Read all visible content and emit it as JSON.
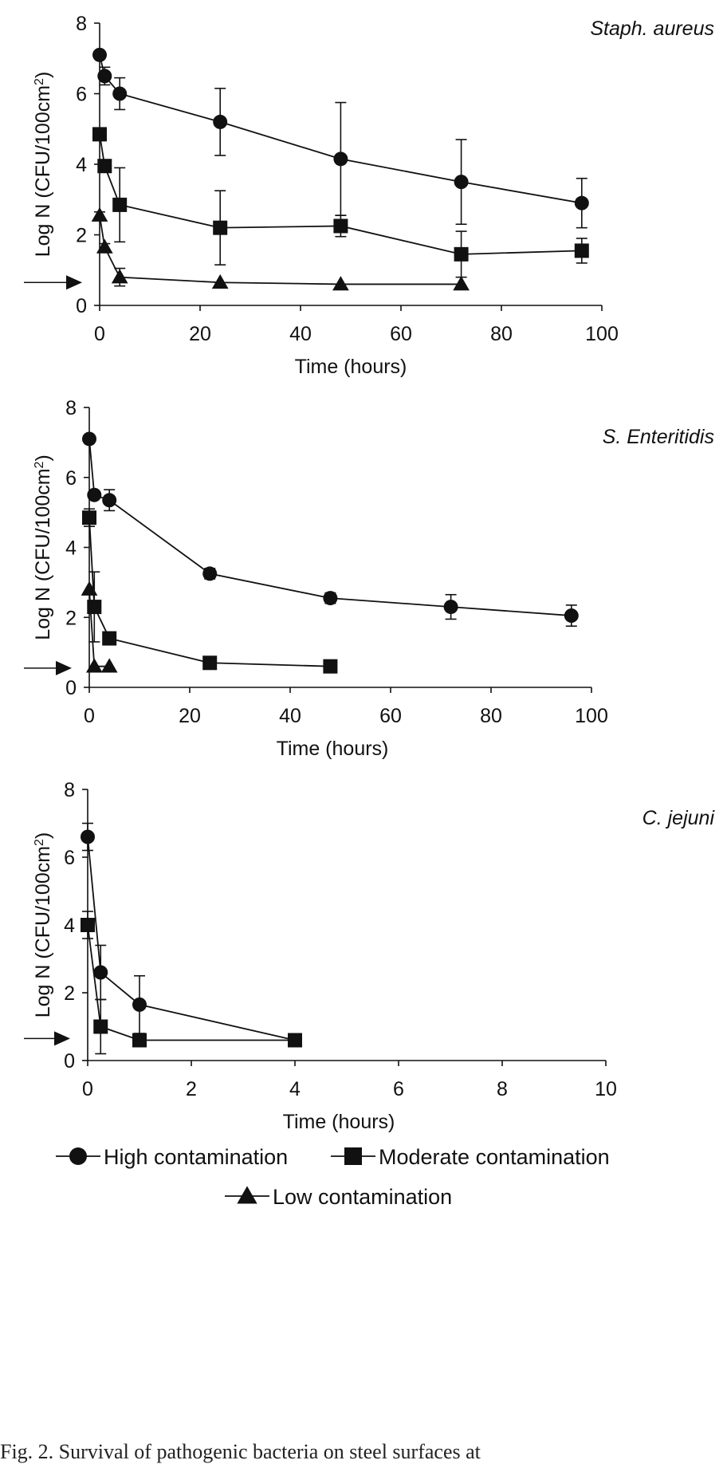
{
  "chart_data": [
    {
      "type": "line",
      "title": "Staph. aureus",
      "xlabel": "Time (hours)",
      "ylabel": "Log N (CFU/100cm2)",
      "xlim": [
        0,
        100
      ],
      "ylim": [
        0,
        8
      ],
      "xticks": [
        "0",
        "20",
        "40",
        "60",
        "80",
        "100"
      ],
      "yticks": [
        "0",
        "2",
        "4",
        "6",
        "8"
      ],
      "detection_limit_arrow_y": 0.65,
      "series": [
        {
          "name": "High contamination",
          "marker": "circle",
          "x": [
            0,
            1,
            4,
            24,
            48,
            72,
            96
          ],
          "y": [
            7.1,
            6.5,
            6.0,
            5.2,
            4.15,
            3.5,
            2.9
          ],
          "err": [
            0.1,
            0.25,
            0.45,
            0.95,
            1.6,
            1.2,
            0.7
          ]
        },
        {
          "name": "Moderate contamination",
          "marker": "square",
          "x": [
            0,
            1,
            4,
            24,
            48,
            72,
            96
          ],
          "y": [
            4.85,
            3.95,
            2.85,
            2.2,
            2.25,
            1.45,
            1.55
          ],
          "err": [
            0.05,
            0.1,
            1.05,
            1.05,
            0.3,
            0.65,
            0.35
          ]
        },
        {
          "name": "Low contamination",
          "marker": "triangle",
          "x": [
            0,
            1,
            4,
            24,
            48,
            72
          ],
          "y": [
            2.55,
            1.65,
            0.8,
            0.65,
            0.6,
            0.6
          ],
          "err": [
            0.1,
            0.1,
            0.25,
            0.05,
            0.05,
            0.05
          ]
        }
      ]
    },
    {
      "type": "line",
      "title": "S. Enteritidis",
      "xlabel": "Time (hours)",
      "ylabel": "Log N (CFU/100cm2)",
      "xlim": [
        0,
        100
      ],
      "ylim": [
        0,
        8
      ],
      "xticks": [
        "0",
        "20",
        "40",
        "60",
        "80",
        "100"
      ],
      "yticks": [
        "0",
        "2",
        "4",
        "6",
        "8"
      ],
      "detection_limit_arrow_y": 0.55,
      "series": [
        {
          "name": "High contamination",
          "marker": "circle",
          "x": [
            0,
            1,
            4,
            24,
            48,
            72,
            96
          ],
          "y": [
            7.1,
            5.5,
            5.35,
            3.25,
            2.55,
            2.3,
            2.05
          ],
          "err": [
            0.05,
            0.1,
            0.3,
            0.15,
            0.15,
            0.35,
            0.3
          ]
        },
        {
          "name": "Moderate contamination",
          "marker": "square",
          "x": [
            0,
            1,
            4,
            24,
            48
          ],
          "y": [
            4.85,
            2.3,
            1.4,
            0.7,
            0.6
          ],
          "err": [
            0.25,
            1.0,
            0.05,
            0.05,
            0.05
          ]
        },
        {
          "name": "Low contamination",
          "marker": "triangle",
          "x": [
            0,
            1,
            4
          ],
          "y": [
            2.8,
            0.6,
            0.6
          ],
          "err": [
            0.05,
            0.05,
            0.05
          ]
        }
      ]
    },
    {
      "type": "line",
      "title": "C. jejuni",
      "xlabel": "Time (hours)",
      "ylabel": "Log N (CFU/100cm2)",
      "xlim": [
        0,
        10
      ],
      "ylim": [
        0,
        8
      ],
      "xticks": [
        "0",
        "2",
        "4",
        "6",
        "8",
        "10"
      ],
      "yticks": [
        "0",
        "2",
        "4",
        "6",
        "8"
      ],
      "detection_limit_arrow_y": 0.65,
      "series": [
        {
          "name": "High contamination",
          "marker": "circle",
          "x": [
            0,
            0.25,
            1,
            4
          ],
          "y": [
            6.6,
            2.6,
            1.65,
            0.6
          ],
          "err": [
            0.4,
            0.8,
            0.85,
            0.1
          ]
        },
        {
          "name": "Moderate contamination",
          "marker": "square",
          "x": [
            0,
            0.25,
            1,
            4
          ],
          "y": [
            4.0,
            1.0,
            0.6,
            0.6
          ],
          "err": [
            0.4,
            0.8,
            0.05,
            0.1
          ]
        }
      ]
    }
  ],
  "legend": {
    "items": [
      {
        "label": "High contamination",
        "marker": "circle"
      },
      {
        "label": "Moderate contamination",
        "marker": "square"
      },
      {
        "label": "Low contamination",
        "marker": "triangle"
      }
    ]
  },
  "caption": "Fig. 2. Survival of pathogenic bacteria on steel surfaces at"
}
